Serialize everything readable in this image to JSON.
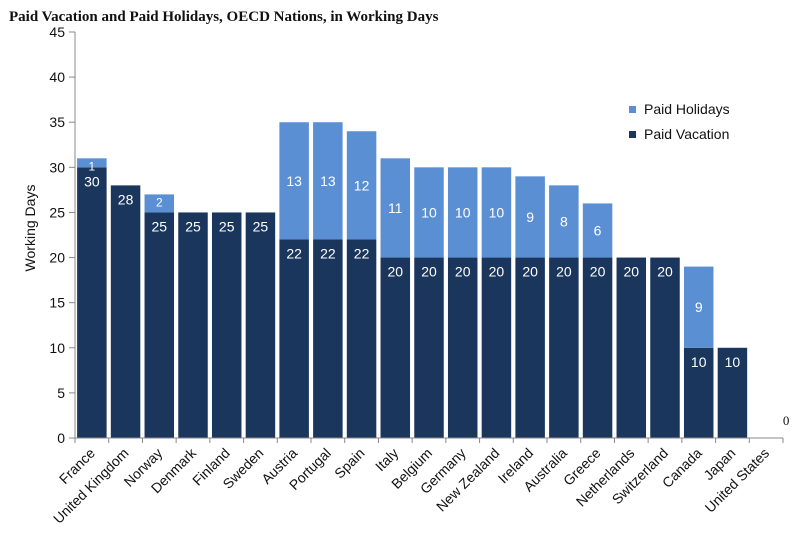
{
  "chart_data": {
    "type": "bar",
    "stacked": true,
    "title": "Paid Vacation and Paid Holidays, OECD Nations, in Working Days",
    "ylabel": "Working Days",
    "xlabel": "",
    "ylim": [
      0,
      45
    ],
    "yticks": [
      0,
      5,
      10,
      15,
      20,
      25,
      30,
      35,
      40,
      45
    ],
    "grid": false,
    "legend_position": "right",
    "categories": [
      "France",
      "United Kingdom",
      "Norway",
      "Denmark",
      "Finland",
      "Sweden",
      "Austria",
      "Portugal",
      "Spain",
      "Italy",
      "Belgium",
      "Germany",
      "New Zealand",
      "Ireland",
      "Australia",
      "Greece",
      "Netherlands",
      "Switzerland",
      "Canada",
      "Japan",
      "United States"
    ],
    "series": [
      {
        "name": "Paid Vacation",
        "color": "#1b365d",
        "values": [
          30,
          28,
          25,
          25,
          25,
          25,
          22,
          22,
          22,
          20,
          20,
          20,
          20,
          20,
          20,
          20,
          20,
          20,
          10,
          10,
          0
        ]
      },
      {
        "name": "Paid Holidays",
        "color": "#5b8fd4",
        "values": [
          1,
          null,
          2,
          null,
          null,
          null,
          13,
          13,
          12,
          11,
          10,
          10,
          10,
          9,
          8,
          6,
          null,
          null,
          9,
          null,
          null
        ]
      }
    ]
  }
}
